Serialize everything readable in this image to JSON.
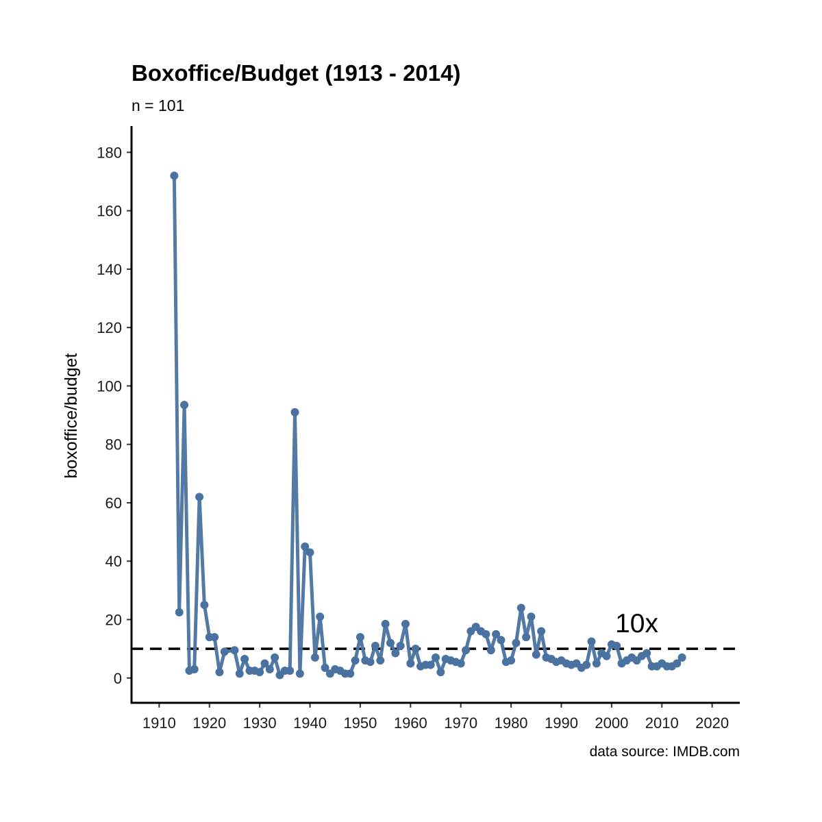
{
  "chart_data": {
    "type": "line",
    "title": "Boxoffice/Budget (1913 - 2014)",
    "subtitle": "n = 101",
    "xlabel": "",
    "ylabel": "boxoffice/budget",
    "caption": "data source: IMDB.com",
    "xlim": [
      1904.5,
      2025.5
    ],
    "ylim": [
      -8.5,
      189
    ],
    "xticks": [
      1910,
      1920,
      1930,
      1940,
      1950,
      1960,
      1970,
      1980,
      1990,
      2000,
      2010,
      2020
    ],
    "yticks": [
      0,
      20,
      40,
      60,
      80,
      100,
      120,
      140,
      160,
      180
    ],
    "grid": false,
    "line_color": "#4a72a0",
    "reference_line": {
      "y": 10,
      "style": "dashed",
      "color": "#000000"
    },
    "annotation": {
      "text": "10x",
      "x": 2005,
      "y": 19
    },
    "series": [
      {
        "x": [
          1913,
          1914,
          1915,
          1916,
          1917,
          1918,
          1919,
          1920,
          1921,
          1922,
          1923,
          1925,
          1926,
          1927,
          1928,
          1929,
          1930,
          1931,
          1932,
          1933,
          1934,
          1935,
          1936,
          1937,
          1938,
          1939,
          1940,
          1941,
          1942,
          1943,
          1944,
          1945,
          1946,
          1947,
          1948,
          1949,
          1950,
          1951,
          1952,
          1953,
          1954,
          1955,
          1956,
          1957,
          1958,
          1959,
          1960,
          1961,
          1962,
          1963,
          1964,
          1965,
          1966,
          1967,
          1968,
          1969,
          1970,
          1971,
          1972,
          1973,
          1974,
          1975,
          1976,
          1977,
          1978,
          1979,
          1980,
          1981,
          1982,
          1983,
          1984,
          1985,
          1986,
          1987,
          1988,
          1989,
          1990,
          1991,
          1992,
          1993,
          1994,
          1995,
          1996,
          1997,
          1998,
          1999,
          2000,
          2001,
          2002,
          2003,
          2004,
          2005,
          2006,
          2007,
          2008,
          2009,
          2010,
          2011,
          2012,
          2013,
          2014
        ],
        "values": [
          172,
          22.5,
          93.5,
          2.5,
          3,
          62,
          25,
          14,
          14,
          2,
          9,
          9.5,
          1.5,
          6.5,
          2.5,
          2.5,
          2,
          5,
          3,
          7,
          1,
          2.5,
          2.5,
          91,
          1.5,
          45,
          43,
          7,
          21,
          3.5,
          1.5,
          3,
          2.5,
          1.5,
          1.5,
          6,
          14,
          6,
          5.5,
          11,
          6,
          18.5,
          12,
          8.5,
          11,
          18.5,
          5,
          10,
          4,
          4.5,
          4.5,
          7,
          2,
          6.5,
          6,
          5.5,
          5,
          9.5,
          16,
          17.5,
          16,
          15,
          9.5,
          15,
          13,
          5.5,
          6,
          12,
          24,
          14,
          21,
          8,
          16,
          7,
          6.5,
          5.5,
          6,
          5,
          4.5,
          5,
          3.5,
          4.5,
          12.5,
          5,
          8.5,
          7.5,
          11.5,
          11,
          5,
          6,
          7,
          6,
          7.5,
          8.5,
          4,
          4,
          5,
          4,
          4,
          5,
          7
        ]
      }
    ]
  }
}
